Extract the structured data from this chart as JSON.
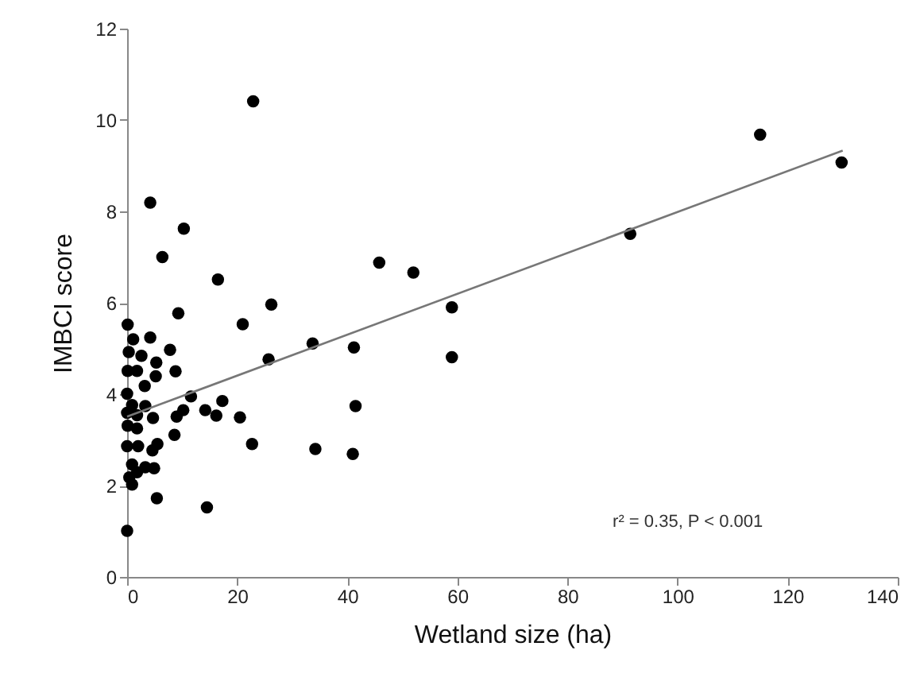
{
  "chart_data": {
    "type": "scatter",
    "xlabel": "Wetland size (ha)",
    "ylabel": "IMBCI score",
    "xlim": [
      0,
      140
    ],
    "xticks": [
      0,
      20,
      40,
      60,
      80,
      100,
      120,
      140
    ],
    "ylim": [
      0,
      12
    ],
    "yticks": [
      0,
      2,
      4,
      6,
      8,
      10,
      12
    ],
    "grid": false,
    "annotations": [
      "r² = 0.35, P < 0.001"
    ],
    "series": [
      {
        "marker": "circle",
        "color": "#000000",
        "x": [
          4.2,
          10.3,
          6.4,
          16.5,
          9.3,
          21.0,
          26.2,
          0.1,
          1.1,
          4.2,
          0.3,
          2.6,
          7.8,
          5.3,
          0.1,
          1.8,
          5.2,
          8.8,
          3.2,
          25.7,
          33.7,
          41.2,
          0,
          11.6,
          0.9,
          3.3,
          0,
          1.8,
          4.7,
          9.0,
          10.2,
          14.2,
          16.2,
          17.3,
          20.5,
          0.1,
          1.8,
          8.6,
          5.5,
          4.6,
          0,
          2.0,
          22.7,
          34.2,
          41.0,
          0.9,
          3.3,
          4.9,
          0.4,
          1.8,
          0.9,
          5.4,
          14.5,
          0,
          22.9,
          115.0,
          129.8,
          91.4,
          45.8,
          52.0,
          59.0,
          59.0,
          41.5
        ],
        "values": [
          8.19,
          7.62,
          7.0,
          6.51,
          5.77,
          5.53,
          5.96,
          5.52,
          5.2,
          5.24,
          4.92,
          4.84,
          4.97,
          4.69,
          4.51,
          4.51,
          4.39,
          4.5,
          4.18,
          4.76,
          5.11,
          5.02,
          4.01,
          3.95,
          3.76,
          3.74,
          3.59,
          3.54,
          3.48,
          3.51,
          3.65,
          3.65,
          3.53,
          3.85,
          3.49,
          3.31,
          3.25,
          3.11,
          2.91,
          2.77,
          2.86,
          2.86,
          2.91,
          2.8,
          2.69,
          2.46,
          2.4,
          2.38,
          2.18,
          2.29,
          2.02,
          1.72,
          1.52,
          1.01,
          10.41,
          9.68,
          9.07,
          7.51,
          6.88,
          6.66,
          5.9,
          4.81,
          3.74
        ]
      },
      {
        "type": "line",
        "line_style": "solid",
        "color": "#777777",
        "x": [
          0,
          130
        ],
        "values": [
          3.51,
          9.33
        ]
      }
    ]
  }
}
